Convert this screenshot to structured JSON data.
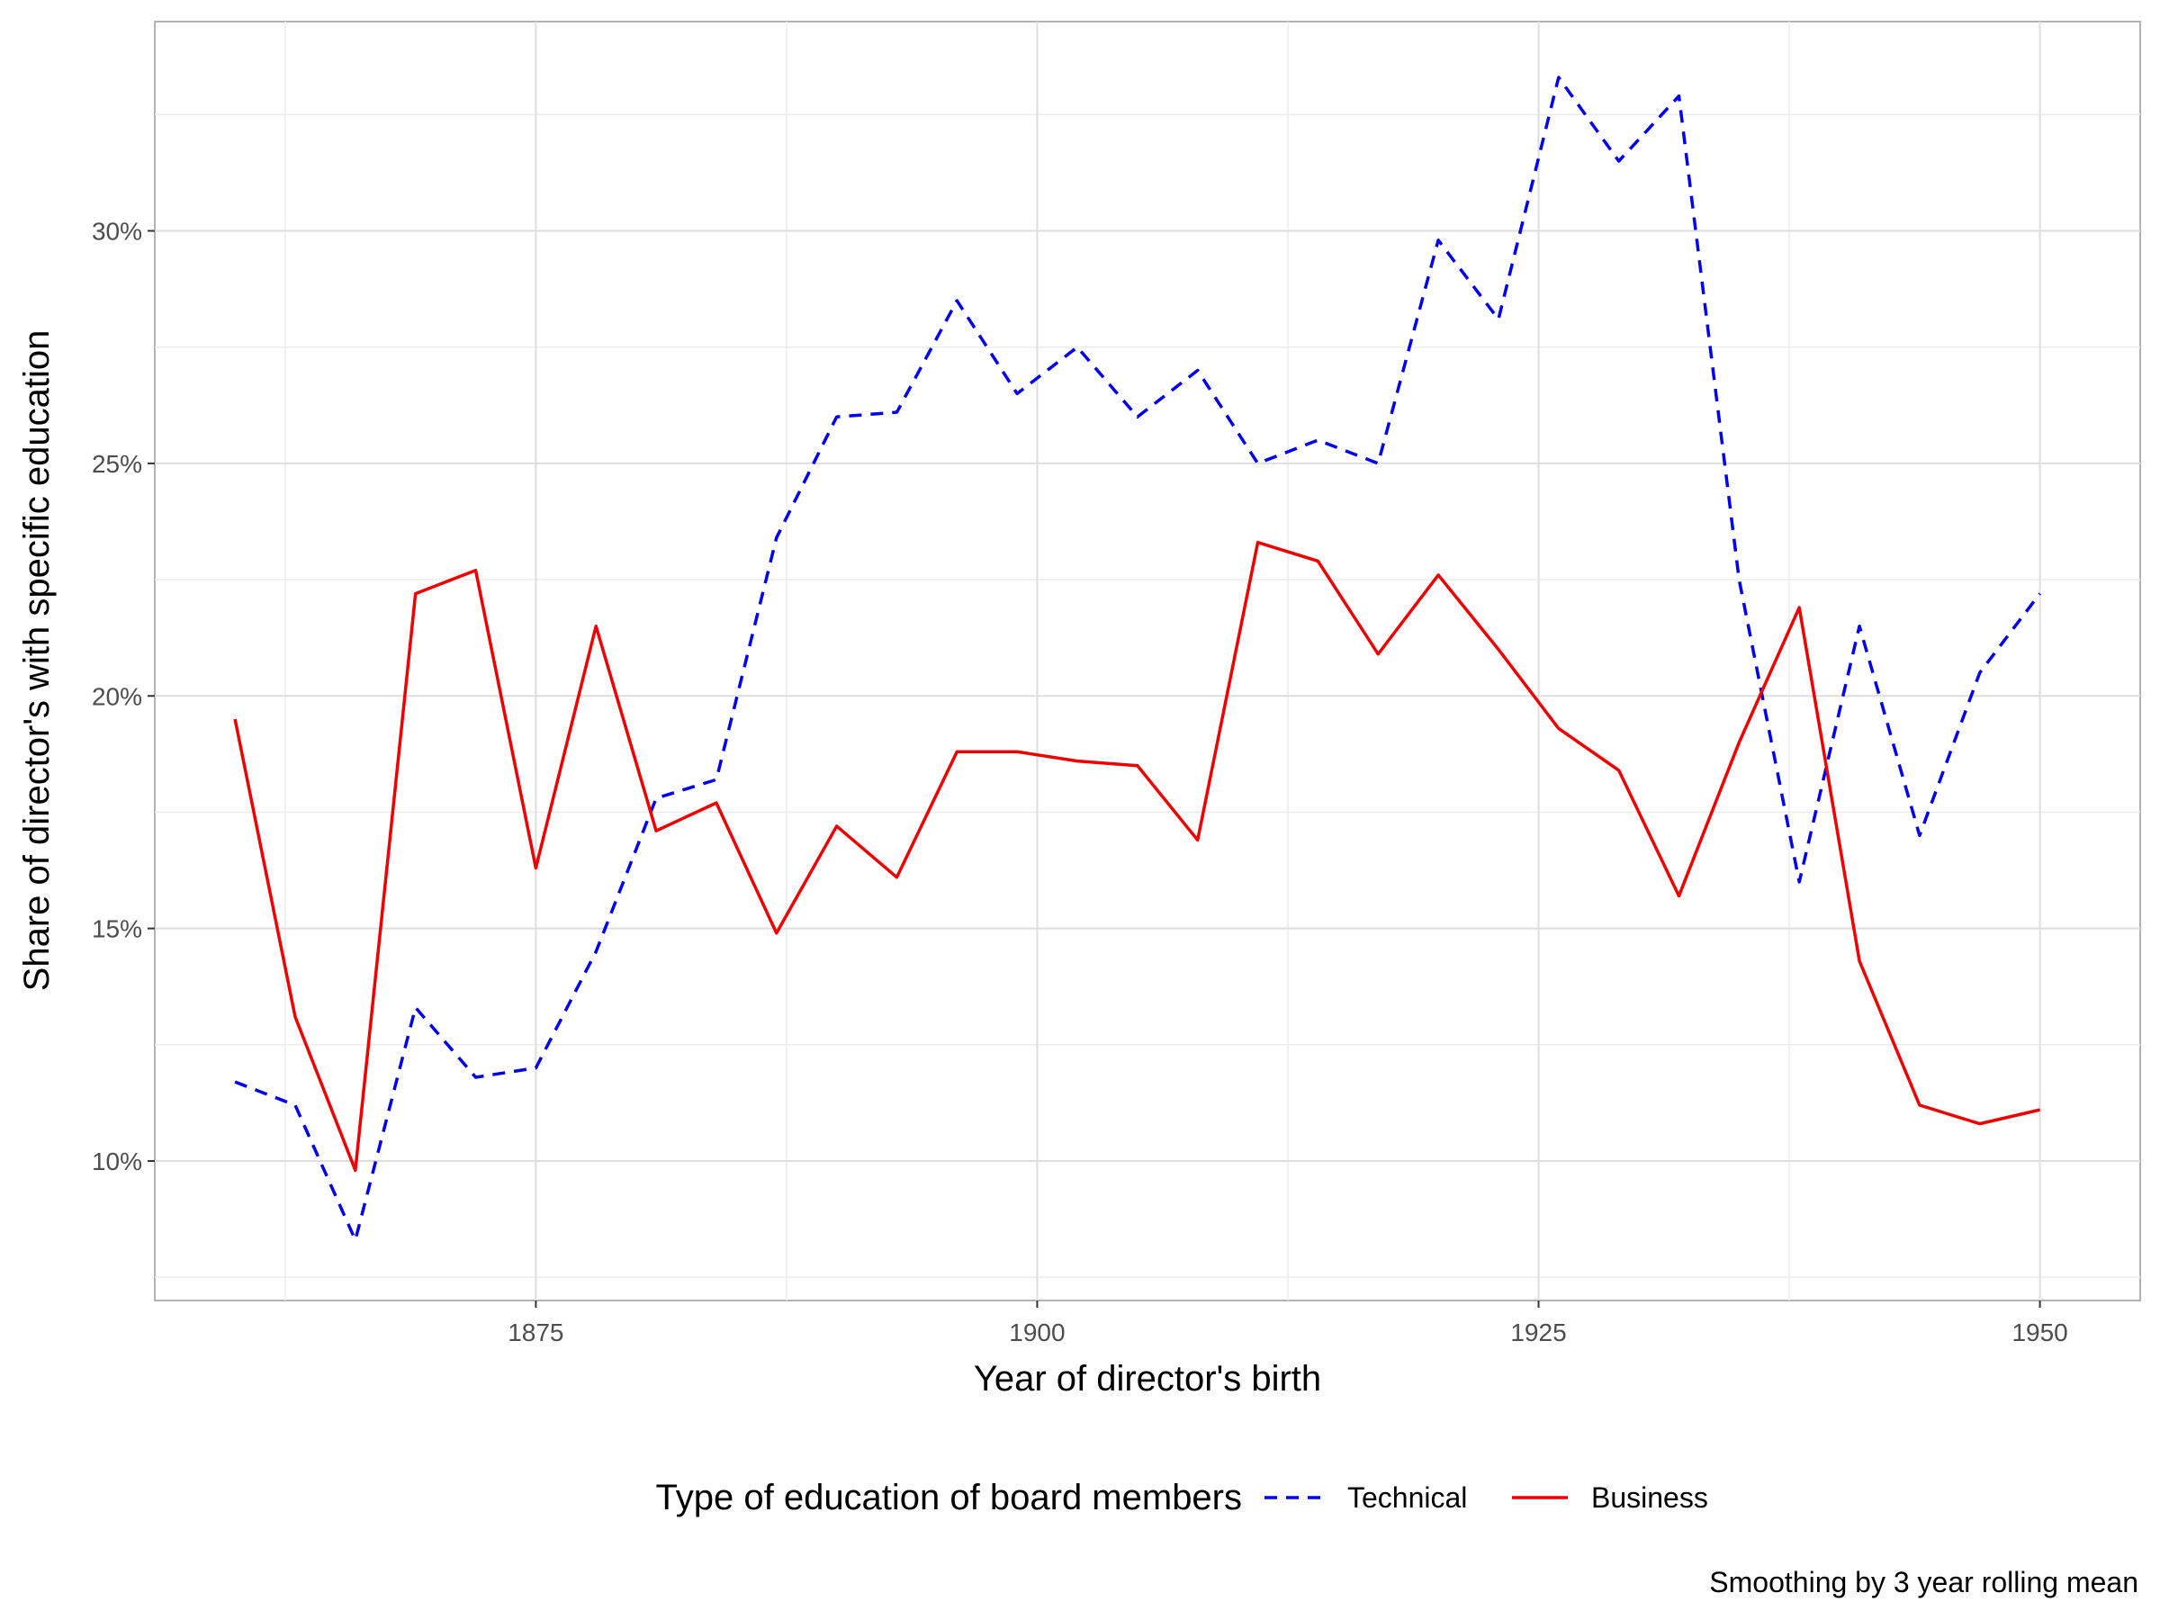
{
  "chart_data": {
    "type": "line",
    "xlabel": "Year of director's birth",
    "ylabel": "Share of director's with specific education",
    "caption": "Smoothing by 3 year rolling mean",
    "legend": {
      "title": "Type of education of board members",
      "position": "bottom"
    },
    "xlim": [
      1856,
      1955
    ],
    "ylim": [
      7,
      34.5
    ],
    "x_ticks": [
      1875,
      1900,
      1925,
      1950
    ],
    "x_tick_labels": [
      "1875",
      "1900",
      "1925",
      "1950"
    ],
    "y_ticks": [
      10,
      15,
      20,
      25,
      30
    ],
    "y_tick_labels": [
      "10%",
      "15%",
      "20%",
      "25%",
      "30%"
    ],
    "grid": true,
    "series": [
      {
        "name": "Technical",
        "color": "#0000ee",
        "dash": "dashed",
        "x": [
          1860,
          1863,
          1866,
          1869,
          1872,
          1875,
          1878,
          1881,
          1884,
          1887,
          1890,
          1893,
          1896,
          1899,
          1902,
          1905,
          1908,
          1911,
          1914,
          1917,
          1920,
          1923,
          1926,
          1929,
          1932,
          1935,
          1938,
          1941,
          1944,
          1947,
          1950
        ],
        "values": [
          11.7,
          11.2,
          8.3,
          13.3,
          11.8,
          12.0,
          14.5,
          17.8,
          18.2,
          23.4,
          26.0,
          26.1,
          28.5,
          26.5,
          27.5,
          26.0,
          27.0,
          25.0,
          25.5,
          25.0,
          29.8,
          28.1,
          33.3,
          31.5,
          32.9,
          22.5,
          16.0,
          21.5,
          17.0,
          20.5,
          22.2
        ]
      },
      {
        "name": "Business",
        "color": "#ee0000",
        "dash": "solid",
        "x": [
          1860,
          1863,
          1866,
          1869,
          1872,
          1875,
          1878,
          1881,
          1884,
          1887,
          1890,
          1893,
          1896,
          1899,
          1902,
          1905,
          1908,
          1911,
          1914,
          1917,
          1920,
          1923,
          1926,
          1929,
          1932,
          1935,
          1938,
          1941,
          1944,
          1947,
          1950
        ],
        "values": [
          19.5,
          13.1,
          9.8,
          22.2,
          22.7,
          16.3,
          21.5,
          17.1,
          17.7,
          14.9,
          17.2,
          16.1,
          18.8,
          18.8,
          18.6,
          18.5,
          16.9,
          23.3,
          22.9,
          20.9,
          22.6,
          21.0,
          19.3,
          18.4,
          15.7,
          19.0,
          21.9,
          14.3,
          11.2,
          10.8,
          11.1
        ]
      }
    ]
  }
}
